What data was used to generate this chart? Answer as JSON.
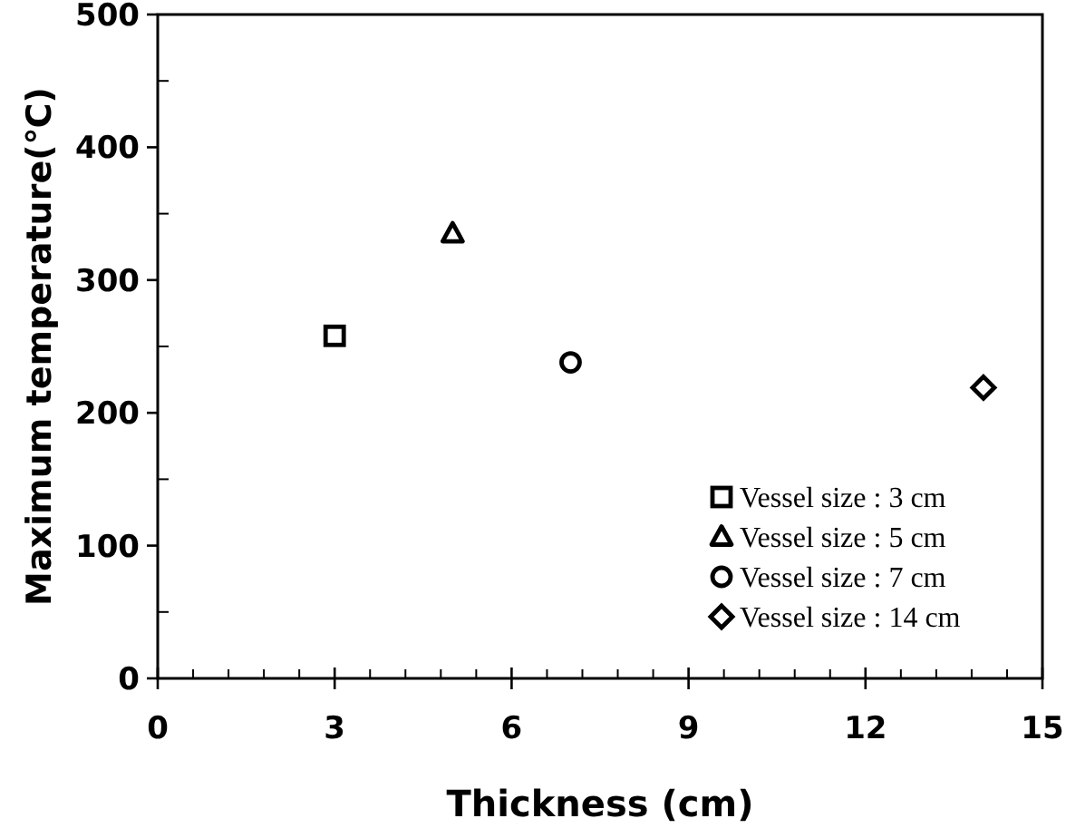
{
  "chart_data": {
    "type": "scatter",
    "xlabel": "Thickness (cm)",
    "ylabel": "Maximum temperature(℃)",
    "xlim": [
      0,
      15
    ],
    "xticks": [
      0,
      3,
      6,
      9,
      12,
      15
    ],
    "ylim": [
      0,
      500
    ],
    "yticks": [
      0,
      100,
      200,
      300,
      400,
      500
    ],
    "grid": false,
    "legend": "bottom right",
    "series": [
      {
        "name": "Vessel size : 3 cm",
        "color": "#000000",
        "marker": "square",
        "x": [
          3
        ],
        "values": [
          258
        ]
      },
      {
        "name": "Vessel size : 5 cm",
        "color": "#000000",
        "marker": "triangle",
        "x": [
          5
        ],
        "values": [
          335
        ]
      },
      {
        "name": "Vessel size : 7 cm",
        "color": "#000000",
        "marker": "circle",
        "x": [
          7
        ],
        "values": [
          238
        ]
      },
      {
        "name": "Vessel size : 14 cm",
        "color": "#000000",
        "marker": "diamond",
        "x": [
          14
        ],
        "values": [
          219
        ]
      }
    ]
  }
}
